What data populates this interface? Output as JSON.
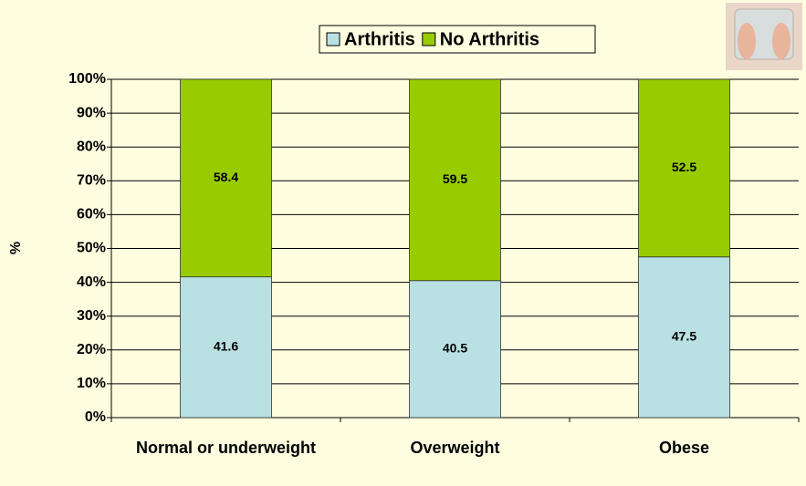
{
  "chart_data": {
    "type": "stacked_bar",
    "y_label": "%",
    "categories": [
      "Normal or underweight",
      "Overweight",
      "Obese"
    ],
    "series": [
      {
        "name": "Arthritis",
        "color": "#b9e1e3",
        "values": [
          41.6,
          40.5,
          47.5
        ]
      },
      {
        "name": "No Arthritis",
        "color": "#99cc00",
        "values": [
          58.4,
          59.5,
          52.5
        ]
      }
    ],
    "ylim": [
      0,
      100
    ],
    "yticks": [
      {
        "value": 0,
        "label": "0%"
      },
      {
        "value": 10,
        "label": "10%"
      },
      {
        "value": 20,
        "label": "20%"
      },
      {
        "value": 30,
        "label": "30%"
      },
      {
        "value": 40,
        "label": "40%"
      },
      {
        "value": 50,
        "label": "50%"
      },
      {
        "value": 60,
        "label": "60%"
      },
      {
        "value": 70,
        "label": "70%"
      },
      {
        "value": 80,
        "label": "80%"
      },
      {
        "value": 90,
        "label": "90%"
      },
      {
        "value": 100,
        "label": "100%"
      }
    ],
    "grid": true,
    "legend": "top"
  }
}
